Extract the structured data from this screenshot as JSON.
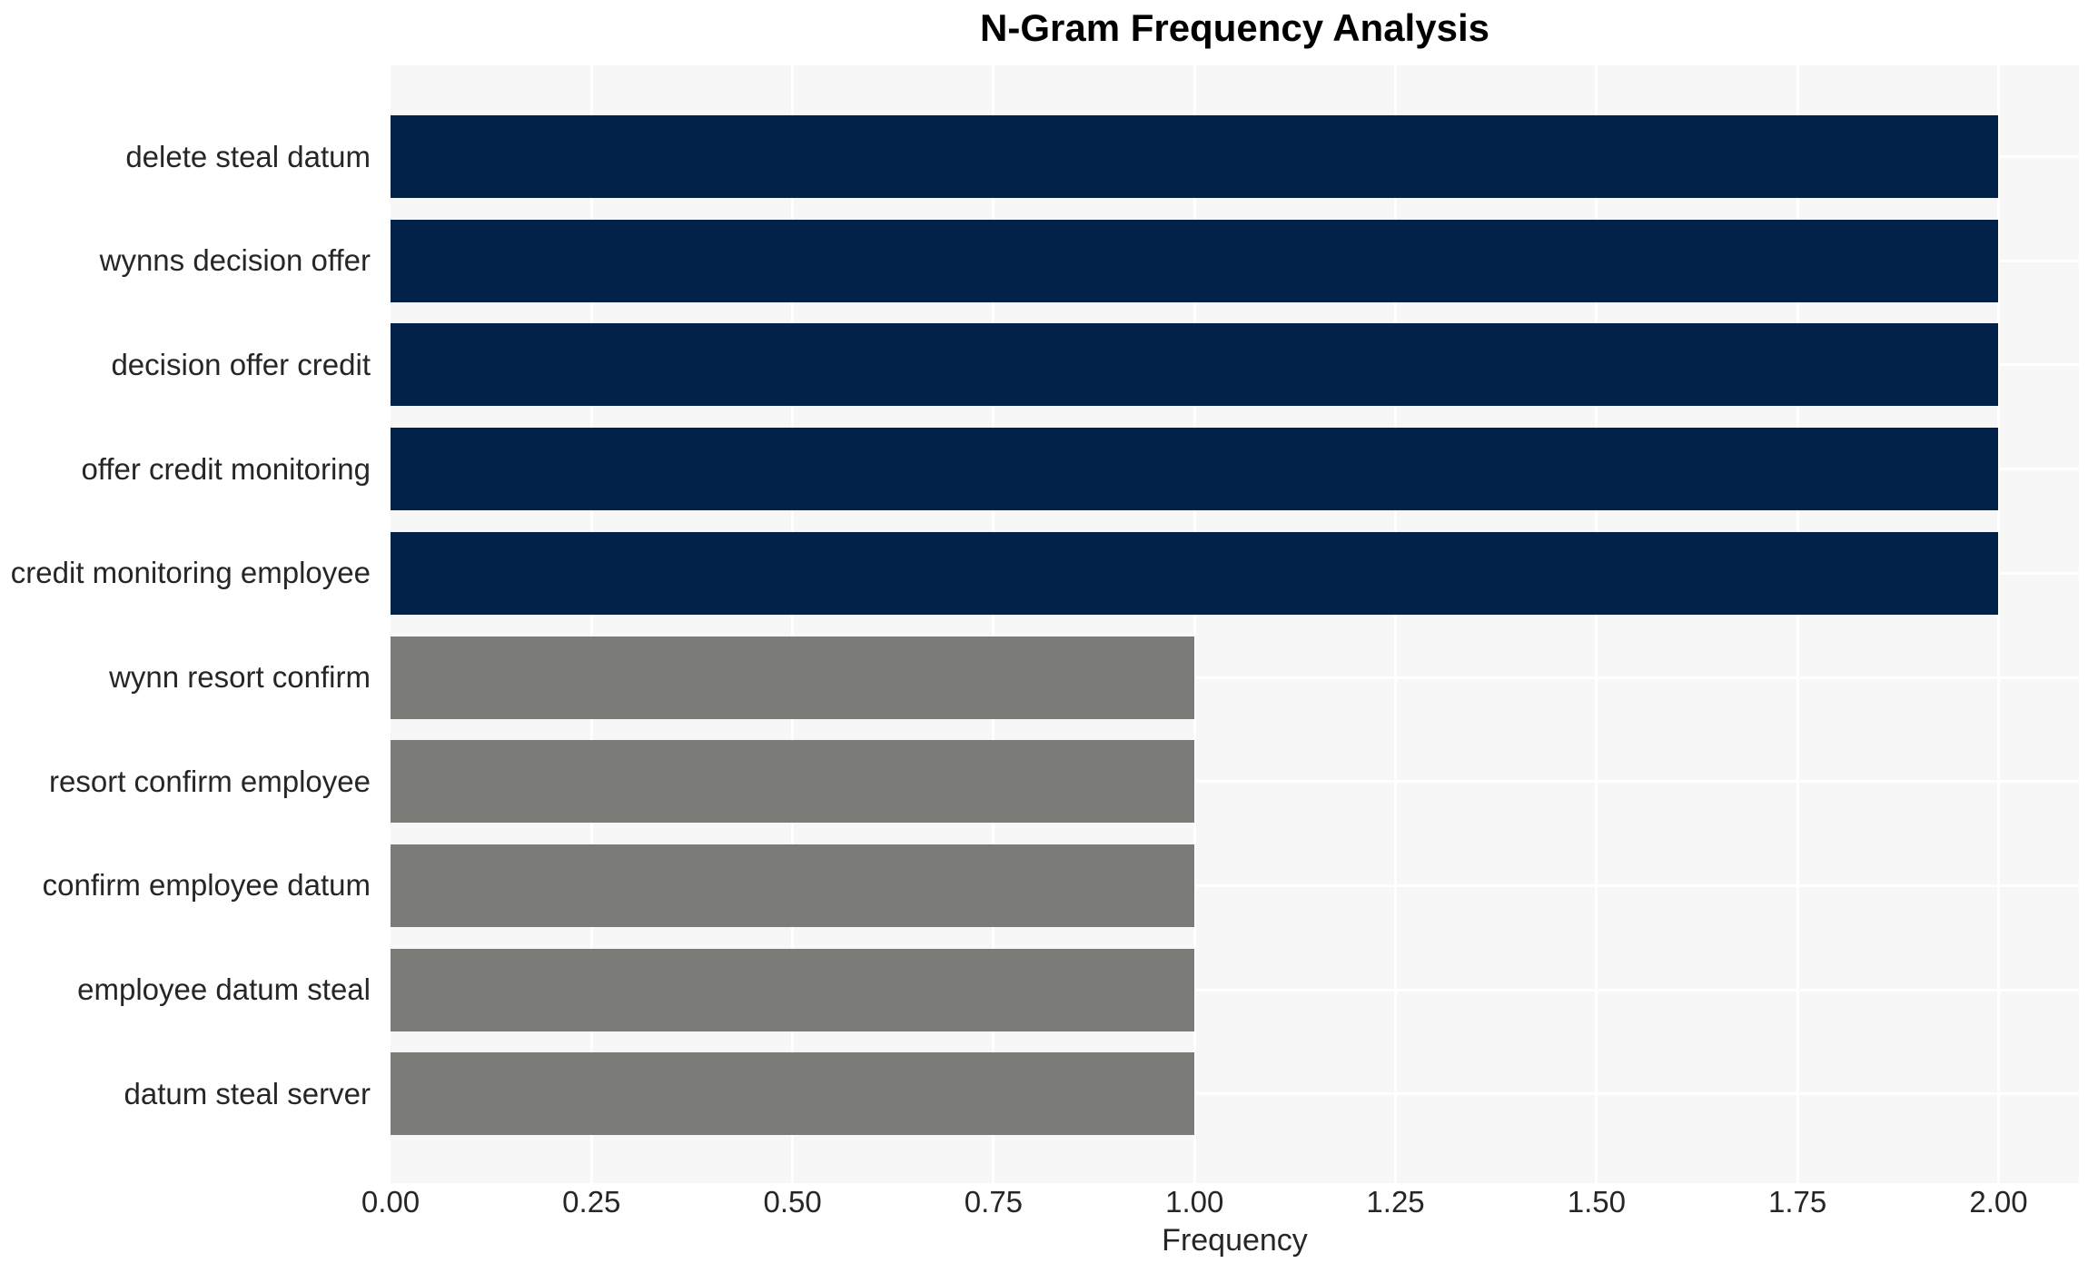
{
  "chart_data": {
    "type": "bar",
    "orientation": "horizontal",
    "title": "N-Gram Frequency Analysis",
    "xlabel": "Frequency",
    "ylabel": "",
    "categories": [
      "delete steal datum",
      "wynns decision offer",
      "decision offer credit",
      "offer credit monitoring",
      "credit monitoring employee",
      "wynn resort confirm",
      "resort confirm employee",
      "confirm employee datum",
      "employee datum steal",
      "datum steal server"
    ],
    "values": [
      2,
      2,
      2,
      2,
      2,
      1,
      1,
      1,
      1,
      1
    ],
    "bar_colors": [
      "#03224a",
      "#03224a",
      "#03224a",
      "#03224a",
      "#03224a",
      "#7b7b77",
      "#7b7b77",
      "#7b7b77",
      "#7b7b77",
      "#7b7b77"
    ],
    "xlim": [
      0,
      2.1
    ],
    "xticks": [
      0,
      0.25,
      0.5,
      0.75,
      1.0,
      1.25,
      1.5,
      1.75,
      2.0
    ],
    "xtick_labels": [
      "0.00",
      "0.25",
      "0.50",
      "0.75",
      "1.00",
      "1.25",
      "1.50",
      "1.75",
      "2.00"
    ],
    "grid": true,
    "legend": false,
    "colors": {
      "plot_background": "#f7f7f7",
      "gridline": "#ffffff",
      "tick_text": "#262626",
      "title_text": "#000000"
    }
  }
}
